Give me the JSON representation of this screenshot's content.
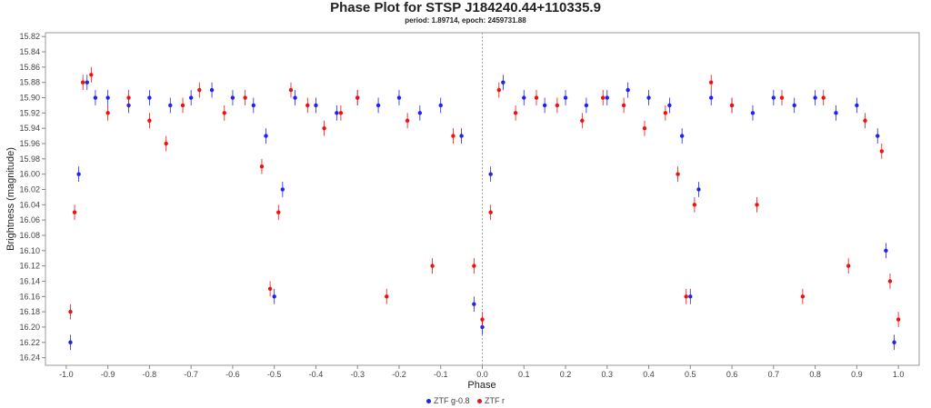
{
  "chart_data": {
    "type": "scatter",
    "title": "Phase Plot for STSP J184240.44+110335.9",
    "subtitle": "period: 1.89714, epoch: 2459731.88",
    "xlabel": "Phase",
    "ylabel": "Brightness (magnitude)",
    "xlim": [
      -1.05,
      1.05
    ],
    "ylim": [
      16.25,
      15.815
    ],
    "y_inverted": true,
    "x_ticks": [
      -1.0,
      -0.9,
      -0.8,
      -0.7,
      -0.6,
      -0.5,
      -0.4,
      -0.3,
      -0.2,
      -0.1,
      0.0,
      0.1,
      0.2,
      0.3,
      0.4,
      0.5,
      0.6,
      0.7,
      0.8,
      0.9,
      1.0
    ],
    "x_tick_labels": [
      "-1.0",
      "-0.9",
      "-0.8",
      "-0.7",
      "-0.6",
      "-0.5",
      "-0.4",
      "-0.3",
      "-0.2",
      "-0.1",
      "0.0",
      "0.1",
      "0.2",
      "0.3",
      "0.4",
      "0.5",
      "0.6",
      "0.7",
      "0.8",
      "0.9",
      "1.0"
    ],
    "y_ticks": [
      15.82,
      15.84,
      15.86,
      15.88,
      15.9,
      15.92,
      15.94,
      15.96,
      15.98,
      16.0,
      16.02,
      16.04,
      16.06,
      16.08,
      16.1,
      16.12,
      16.14,
      16.16,
      16.18,
      16.2,
      16.22,
      16.24
    ],
    "y_tick_labels": [
      "15.82",
      "15.84",
      "15.86",
      "15.88",
      "15.90",
      "15.92",
      "15.94",
      "15.96",
      "15.98",
      "16.00",
      "16.02",
      "16.04",
      "16.06",
      "16.08",
      "16.10",
      "16.12",
      "16.14",
      "16.16",
      "16.18",
      "16.20",
      "16.22",
      "16.24"
    ],
    "grid": false,
    "vertical_marker_x": 0.0,
    "legend_position": "bottom-center",
    "series": [
      {
        "name": "ZTF g-0.8",
        "color": "#2222ee",
        "x": [
          -0.99,
          -0.97,
          -0.95,
          -0.93,
          -0.9,
          -0.85,
          -0.8,
          -0.75,
          -0.7,
          -0.65,
          -0.6,
          -0.55,
          -0.52,
          -0.5,
          -0.48,
          -0.45,
          -0.4,
          -0.35,
          -0.3,
          -0.25,
          -0.2,
          -0.15,
          -0.1,
          -0.05,
          -0.02,
          0.0,
          0.02,
          0.05,
          0.1,
          0.15,
          0.2,
          0.25,
          0.3,
          0.35,
          0.4,
          0.45,
          0.48,
          0.5,
          0.52,
          0.55,
          0.6,
          0.65,
          0.7,
          0.75,
          0.8,
          0.85,
          0.9,
          0.95,
          0.97,
          0.99
        ],
        "y": [
          16.22,
          16.0,
          15.88,
          15.9,
          15.9,
          15.91,
          15.9,
          15.91,
          15.9,
          15.89,
          15.9,
          15.91,
          15.95,
          16.16,
          16.02,
          15.9,
          15.91,
          15.92,
          15.9,
          15.91,
          15.9,
          15.92,
          15.91,
          15.95,
          16.17,
          16.2,
          16.0,
          15.88,
          15.9,
          15.91,
          15.9,
          15.91,
          15.9,
          15.89,
          15.9,
          15.91,
          15.95,
          16.16,
          16.02,
          15.9,
          15.91,
          15.92,
          15.9,
          15.91,
          15.9,
          15.92,
          15.91,
          15.95,
          16.1,
          16.22
        ],
        "yerr": [
          0.01,
          0.01,
          0.01,
          0.01,
          0.01,
          0.01,
          0.01,
          0.01,
          0.01,
          0.01,
          0.01,
          0.01,
          0.01,
          0.01,
          0.01,
          0.01,
          0.01,
          0.01,
          0.01,
          0.01,
          0.01,
          0.01,
          0.01,
          0.01,
          0.01,
          0.01,
          0.01,
          0.01,
          0.01,
          0.01,
          0.01,
          0.01,
          0.01,
          0.01,
          0.01,
          0.01,
          0.01,
          0.01,
          0.01,
          0.01,
          0.01,
          0.01,
          0.01,
          0.01,
          0.01,
          0.01,
          0.01,
          0.01,
          0.01,
          0.01
        ]
      },
      {
        "name": "ZTF r",
        "color": "#ee1111",
        "x": [
          -0.99,
          -0.98,
          -0.96,
          -0.94,
          -0.9,
          -0.85,
          -0.8,
          -0.76,
          -0.72,
          -0.68,
          -0.62,
          -0.57,
          -0.53,
          -0.51,
          -0.49,
          -0.46,
          -0.42,
          -0.38,
          -0.34,
          -0.3,
          -0.23,
          -0.18,
          -0.12,
          -0.07,
          -0.02,
          0.0,
          0.02,
          0.04,
          0.08,
          0.13,
          0.18,
          0.24,
          0.29,
          0.34,
          0.39,
          0.44,
          0.47,
          0.49,
          0.51,
          0.55,
          0.6,
          0.66,
          0.72,
          0.77,
          0.82,
          0.88,
          0.92,
          0.96,
          0.98,
          1.0
        ],
        "y": [
          16.18,
          16.05,
          15.88,
          15.87,
          15.92,
          15.9,
          15.93,
          15.96,
          15.91,
          15.89,
          15.92,
          15.9,
          15.99,
          16.15,
          16.05,
          15.89,
          15.91,
          15.94,
          15.92,
          15.9,
          16.16,
          15.93,
          16.12,
          15.95,
          16.12,
          16.19,
          16.05,
          15.89,
          15.92,
          15.9,
          15.91,
          15.93,
          15.9,
          15.91,
          15.94,
          15.92,
          16.0,
          16.16,
          16.04,
          15.88,
          15.91,
          16.04,
          15.9,
          16.16,
          15.9,
          16.12,
          15.93,
          15.97,
          16.14,
          16.19
        ],
        "yerr": [
          0.01,
          0.01,
          0.01,
          0.01,
          0.01,
          0.01,
          0.01,
          0.01,
          0.01,
          0.01,
          0.01,
          0.01,
          0.01,
          0.01,
          0.01,
          0.01,
          0.01,
          0.01,
          0.01,
          0.01,
          0.01,
          0.01,
          0.01,
          0.01,
          0.01,
          0.01,
          0.01,
          0.01,
          0.01,
          0.01,
          0.01,
          0.01,
          0.01,
          0.01,
          0.01,
          0.01,
          0.01,
          0.01,
          0.01,
          0.01,
          0.01,
          0.01,
          0.01,
          0.01,
          0.01,
          0.01,
          0.01,
          0.01,
          0.01,
          0.01
        ]
      }
    ]
  }
}
